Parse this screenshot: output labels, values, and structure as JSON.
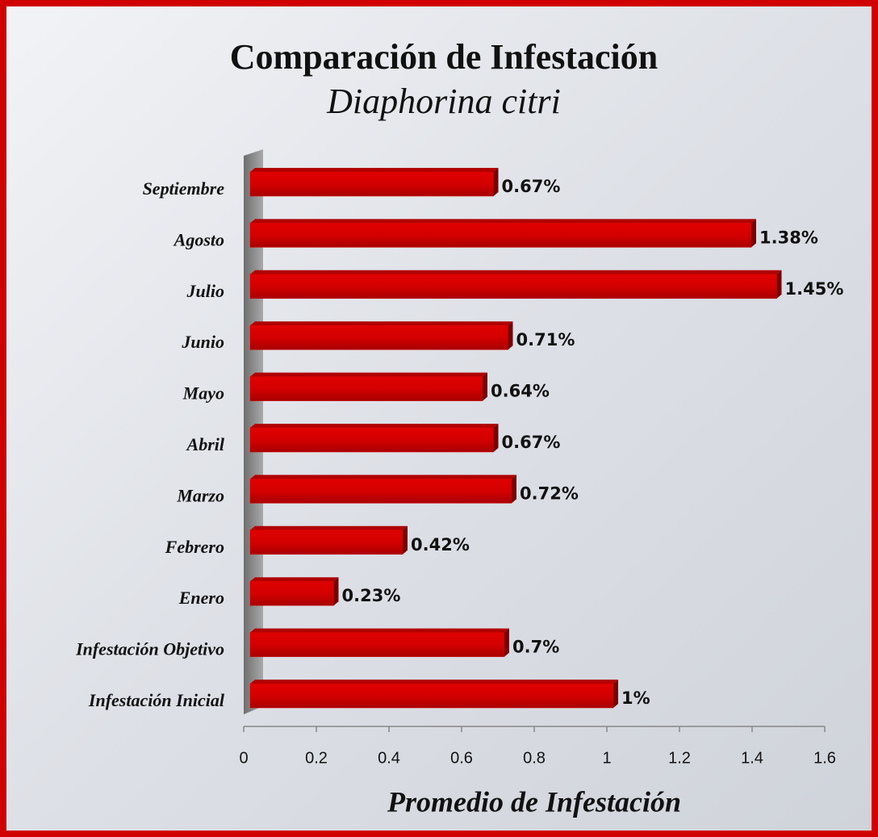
{
  "chart_data": {
    "type": "bar",
    "orientation": "horizontal",
    "title": "Comparación de Infestación",
    "subtitle": "Diaphorina citri",
    "xlabel": "Promedio de Infestación",
    "categories": [
      "Septiembre",
      "Agosto",
      "Julio",
      "Junio",
      "Mayo",
      "Abril",
      "Marzo",
      "Febrero",
      "Enero",
      "Infestación Objetivo",
      "Infestación Inicial"
    ],
    "values": [
      0.67,
      1.38,
      1.45,
      0.71,
      0.64,
      0.67,
      0.72,
      0.42,
      0.23,
      0.7,
      1
    ],
    "value_labels": [
      "0.67%",
      "1.38%",
      "1.45%",
      "0.71%",
      "0.64%",
      "0.67%",
      "0.72%",
      "0.42%",
      "0.23%",
      "0.7%",
      "1%"
    ],
    "color": "#d40000",
    "xlim": [
      0,
      1.6
    ],
    "xticks": [
      0,
      0.2,
      0.4,
      0.6,
      0.8,
      1,
      1.2,
      1.4,
      1.6
    ],
    "grid": false
  }
}
